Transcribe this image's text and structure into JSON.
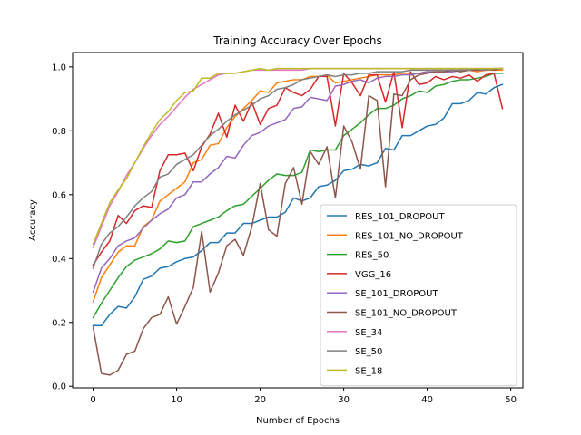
{
  "chart_data": {
    "type": "line",
    "title": "Training Accuracy Over Epochs",
    "xlabel": "Number of Epochs",
    "ylabel": "Accuracy",
    "xlim": [
      -2.45,
      51.45
    ],
    "ylim": [
      -0.005,
      1.045
    ],
    "xticks": [
      0,
      10,
      20,
      30,
      40,
      50
    ],
    "yticks": [
      0.0,
      0.2,
      0.4,
      0.6,
      0.8,
      1.0
    ],
    "xtick_labels": [
      "0",
      "10",
      "20",
      "30",
      "40",
      "50"
    ],
    "ytick_labels": [
      "0.0",
      "0.2",
      "0.4",
      "0.6",
      "0.8",
      "1.0"
    ],
    "grid": false,
    "legend_position": "lower-right",
    "x": [
      0,
      1,
      2,
      3,
      4,
      5,
      6,
      7,
      8,
      9,
      10,
      11,
      12,
      13,
      14,
      15,
      16,
      17,
      18,
      19,
      20,
      21,
      22,
      23,
      24,
      25,
      26,
      27,
      28,
      29,
      30,
      31,
      32,
      33,
      34,
      35,
      36,
      37,
      38,
      39,
      40,
      41,
      42,
      43,
      44,
      45,
      46,
      47,
      48,
      49
    ],
    "series": [
      {
        "name": "RES_101_DROPOUT",
        "color": "#1f77b4",
        "values": [
          0.19,
          0.19,
          0.225,
          0.25,
          0.245,
          0.28,
          0.335,
          0.345,
          0.37,
          0.375,
          0.39,
          0.4,
          0.405,
          0.425,
          0.45,
          0.45,
          0.48,
          0.48,
          0.51,
          0.51,
          0.52,
          0.53,
          0.53,
          0.545,
          0.59,
          0.58,
          0.59,
          0.625,
          0.63,
          0.645,
          0.675,
          0.68,
          0.695,
          0.69,
          0.7,
          0.745,
          0.74,
          0.785,
          0.785,
          0.8,
          0.815,
          0.82,
          0.84,
          0.885,
          0.885,
          0.895,
          0.92,
          0.915,
          0.935,
          0.945
        ]
      },
      {
        "name": "RES_101_NO_DROPOUT",
        "color": "#ff7f0e",
        "values": [
          0.265,
          0.34,
          0.38,
          0.42,
          0.44,
          0.44,
          0.5,
          0.52,
          0.58,
          0.6,
          0.62,
          0.64,
          0.7,
          0.71,
          0.755,
          0.76,
          0.81,
          0.845,
          0.87,
          0.895,
          0.925,
          0.92,
          0.95,
          0.955,
          0.96,
          0.96,
          0.97,
          0.97,
          0.975,
          0.95,
          0.955,
          0.96,
          0.965,
          0.97,
          0.975,
          0.975,
          0.975,
          0.98,
          0.98,
          0.98,
          0.985,
          0.985,
          0.985,
          0.985,
          0.99,
          0.99,
          0.985,
          0.99,
          0.99,
          0.99
        ]
      },
      {
        "name": "RES_50",
        "color": "#2ca02c",
        "values": [
          0.215,
          0.26,
          0.3,
          0.34,
          0.375,
          0.395,
          0.405,
          0.415,
          0.43,
          0.455,
          0.45,
          0.455,
          0.5,
          0.51,
          0.52,
          0.53,
          0.55,
          0.565,
          0.57,
          0.595,
          0.62,
          0.645,
          0.665,
          0.66,
          0.66,
          0.67,
          0.74,
          0.735,
          0.74,
          0.74,
          0.785,
          0.805,
          0.825,
          0.85,
          0.87,
          0.87,
          0.88,
          0.9,
          0.91,
          0.925,
          0.92,
          0.94,
          0.945,
          0.955,
          0.96,
          0.96,
          0.965,
          0.97,
          0.98,
          0.98
        ]
      },
      {
        "name": "VGG_16",
        "color": "#d62728",
        "values": [
          0.38,
          0.42,
          0.455,
          0.535,
          0.51,
          0.55,
          0.565,
          0.56,
          0.675,
          0.725,
          0.725,
          0.73,
          0.675,
          0.75,
          0.79,
          0.855,
          0.78,
          0.88,
          0.83,
          0.89,
          0.82,
          0.87,
          0.88,
          0.935,
          0.92,
          0.91,
          0.93,
          0.97,
          0.97,
          0.815,
          0.98,
          0.95,
          0.91,
          0.975,
          0.975,
          0.89,
          0.985,
          0.81,
          0.985,
          0.945,
          0.95,
          0.97,
          0.96,
          0.97,
          0.965,
          0.975,
          0.955,
          0.975,
          0.98,
          0.87
        ]
      },
      {
        "name": "SE_101_DROPOUT",
        "color": "#9467bd",
        "values": [
          0.295,
          0.37,
          0.4,
          0.44,
          0.455,
          0.465,
          0.495,
          0.52,
          0.54,
          0.555,
          0.59,
          0.6,
          0.64,
          0.64,
          0.665,
          0.685,
          0.72,
          0.715,
          0.755,
          0.785,
          0.795,
          0.815,
          0.825,
          0.835,
          0.87,
          0.875,
          0.905,
          0.9,
          0.895,
          0.94,
          0.945,
          0.955,
          0.96,
          0.95,
          0.965,
          0.97,
          0.97,
          0.975,
          0.975,
          0.98,
          0.985,
          0.985,
          0.985,
          0.985,
          0.99,
          0.99,
          0.99,
          0.99,
          0.995,
          0.995
        ]
      },
      {
        "name": "SE_101_NO_DROPOUT",
        "color": "#8c564b",
        "values": [
          0.185,
          0.04,
          0.035,
          0.05,
          0.1,
          0.11,
          0.18,
          0.215,
          0.225,
          0.28,
          0.195,
          0.25,
          0.31,
          0.485,
          0.295,
          0.355,
          0.44,
          0.46,
          0.41,
          0.5,
          0.635,
          0.49,
          0.47,
          0.635,
          0.685,
          0.57,
          0.735,
          0.695,
          0.75,
          0.59,
          0.815,
          0.765,
          0.68,
          0.91,
          0.895,
          0.625,
          0.915,
          0.91,
          0.96,
          0.975,
          0.98,
          0.985,
          0.985,
          0.99,
          0.985,
          0.99,
          0.99,
          0.995,
          0.99,
          0.995
        ]
      },
      {
        "name": "SE_34",
        "color": "#e377c2",
        "values": [
          0.435,
          0.5,
          0.565,
          0.61,
          0.66,
          0.7,
          0.745,
          0.785,
          0.82,
          0.845,
          0.875,
          0.905,
          0.93,
          0.945,
          0.96,
          0.975,
          0.98,
          0.98,
          0.985,
          0.99,
          0.99,
          0.99,
          0.99,
          0.99,
          0.99,
          0.99,
          0.995,
          0.995,
          0.995,
          0.995,
          0.995,
          0.995,
          0.995,
          0.995,
          0.995,
          0.995,
          0.995,
          0.995,
          0.995,
          0.995,
          0.995,
          0.995,
          0.995,
          0.995,
          0.995,
          0.995,
          0.995,
          0.995,
          0.995,
          0.995
        ]
      },
      {
        "name": "SE_50",
        "color": "#7f7f7f",
        "values": [
          0.37,
          0.445,
          0.48,
          0.5,
          0.53,
          0.565,
          0.59,
          0.61,
          0.655,
          0.665,
          0.695,
          0.71,
          0.725,
          0.755,
          0.785,
          0.805,
          0.83,
          0.85,
          0.865,
          0.88,
          0.9,
          0.91,
          0.93,
          0.935,
          0.945,
          0.96,
          0.965,
          0.97,
          0.975,
          0.97,
          0.975,
          0.975,
          0.98,
          0.98,
          0.985,
          0.985,
          0.985,
          0.985,
          0.99,
          0.99,
          0.99,
          0.99,
          0.99,
          0.99,
          0.99,
          0.99,
          0.995,
          0.99,
          0.995,
          0.995
        ]
      },
      {
        "name": "SE_18",
        "color": "#bcbd22",
        "values": [
          0.445,
          0.51,
          0.575,
          0.615,
          0.65,
          0.7,
          0.75,
          0.795,
          0.835,
          0.86,
          0.895,
          0.92,
          0.925,
          0.965,
          0.965,
          0.98,
          0.98,
          0.98,
          0.985,
          0.99,
          0.995,
          0.99,
          0.995,
          0.995,
          0.995,
          0.995,
          0.995,
          0.995,
          0.995,
          0.995,
          0.995,
          0.995,
          0.995,
          0.995,
          0.995,
          0.995,
          0.995,
          0.995,
          0.995,
          0.995,
          0.995,
          0.995,
          0.995,
          0.995,
          0.995,
          0.995,
          0.995,
          0.995,
          0.995,
          0.995
        ]
      }
    ]
  }
}
